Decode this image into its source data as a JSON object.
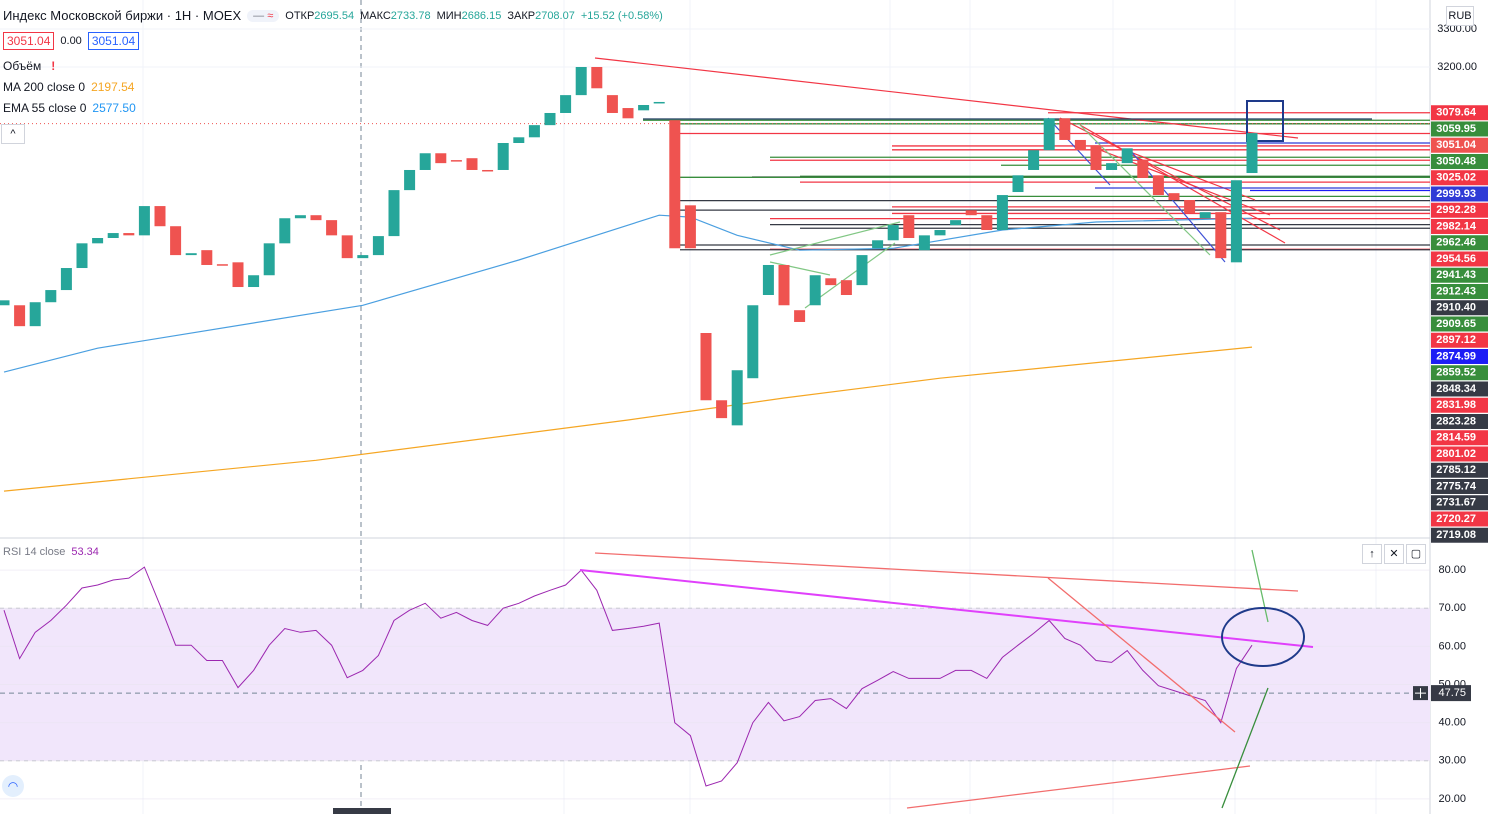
{
  "chart_data": [
    {
      "type": "candlestick",
      "title": "Индекс Московской биржи · 1H · MOEX",
      "ohlc": [
        {
          "label": "ОТКР",
          "value": 2695.54
        },
        {
          "label": "МАКС",
          "value": 2733.78
        },
        {
          "label": "МИН",
          "value": 2686.15
        },
        {
          "label": "ЗАКР",
          "value": 2708.07
        }
      ],
      "change": "+15.52 (+0.58%)",
      "bid": 3051.04,
      "spread": {
        "value": 0,
        "label": "0.00"
      },
      "ask": 3051.04,
      "volume_label": "Объём",
      "volume_warning": "!",
      "currency": "RUB",
      "color_up": "#26a69a",
      "color_down": "#ef5350",
      "open": [
        2573,
        2573,
        2518,
        2581,
        2613,
        2671,
        2736,
        2750,
        2763,
        2757,
        2834,
        2781,
        2705,
        2718,
        2681,
        2686,
        2621,
        2652,
        2736,
        2802,
        2810,
        2797,
        2757,
        2697,
        2705,
        2755,
        2876,
        2929,
        2973,
        2955,
        2960,
        2929,
        2929,
        3000,
        3015,
        3047,
        3079,
        3126,
        3200,
        3126,
        3092,
        3086,
        3105,
        3060,
        2836,
        2500,
        2323,
        2257,
        2381,
        2600,
        2679,
        2560,
        2573,
        2644,
        2639,
        2626,
        2723,
        2744,
        2810,
        2718,
        2757,
        2784,
        2823,
        2810,
        2771,
        2871,
        2929,
        2981,
        3065,
        3008,
        2994,
        2929,
        2947,
        2955,
        2915,
        2868,
        2850,
        2802,
        2818,
        2686,
        2921
      ],
      "close": [
        2586,
        2518,
        2581,
        2613,
        2671,
        2736,
        2750,
        2763,
        2757,
        2834,
        2781,
        2705,
        2710,
        2679,
        2679,
        2621,
        2652,
        2736,
        2802,
        2810,
        2797,
        2757,
        2697,
        2705,
        2755,
        2876,
        2929,
        2973,
        2947,
        2952,
        2929,
        2926,
        3000,
        3015,
        3047,
        3079,
        3126,
        3200,
        3144,
        3079,
        3065,
        3100,
        3108,
        2723,
        2723,
        2323,
        2276,
        2402,
        2573,
        2679,
        2573,
        2529,
        2652,
        2626,
        2600,
        2705,
        2744,
        2784,
        2750,
        2757,
        2771,
        2797,
        2810,
        2771,
        2863,
        2915,
        2981,
        3065,
        3008,
        2981,
        2929,
        2947,
        2986,
        2908,
        2863,
        2850,
        2815,
        2818,
        2697,
        2902,
        3026
      ],
      "ylim": [
        1960.53,
        3376.32
      ],
      "yticks": [
        {
          "value": 3300,
          "label": "3300.00"
        },
        {
          "value": 3200,
          "label": "3200.00"
        }
      ],
      "series": [
        {
          "name": "MA 200 close 0",
          "color": "#f5a623",
          "x": [
            0,
            20,
            40,
            50,
            60,
            80
          ],
          "values": [
            2084,
            2165,
            2271,
            2329,
            2381,
            2463
          ],
          "legend_value": 2197.54
        },
        {
          "name": "EMA 55 close 0",
          "color": "#4a9fe0",
          "x": [
            0,
            6,
            23,
            33,
            42,
            44,
            47,
            51,
            57,
            64,
            70,
            80
          ],
          "values": [
            2397,
            2460,
            2573,
            2692,
            2810,
            2805,
            2757,
            2718,
            2723,
            2771,
            2792,
            2802
          ],
          "legend_value": {
            "value": 2577.5,
            "label": "2577.50"
          }
        }
      ],
      "levels": [
        {
          "value": 3079.64,
          "label": "3079.64",
          "color": "#f23645"
        },
        {
          "value": 3059.95,
          "label": "3059.95",
          "color": "#388e3c"
        },
        {
          "value": 3051.04,
          "label": "3051.04",
          "color": "#ef5350"
        },
        {
          "value": 3050.48,
          "label": "3050.48",
          "color": "#388e3c"
        },
        {
          "value": 3025.02,
          "label": "3025.02",
          "color": "#f23645"
        },
        {
          "value": 2999.93,
          "label": "2999.93",
          "color": "#2f3bd6"
        },
        {
          "value": 2992.28,
          "label": "2992.28",
          "color": "#f23645"
        },
        {
          "value": 2982.14,
          "label": "2982.14",
          "color": "#f23645"
        },
        {
          "value": 2962.46,
          "label": "2962.46",
          "color": "#388e3c"
        },
        {
          "value": 2954.56,
          "label": "2954.56",
          "color": "#f23645"
        },
        {
          "value": 2941.43,
          "label": "2941.43",
          "color": "#388e3c"
        },
        {
          "value": 2912.43,
          "label": "2912.43",
          "color": "#388e3c"
        },
        {
          "value": 2910.4,
          "label": "2910.40",
          "color": "#363a45"
        },
        {
          "value": 2909.65,
          "label": "2909.65",
          "color": "#388e3c"
        },
        {
          "value": 2897.12,
          "label": "2897.12",
          "color": "#f23645"
        },
        {
          "value": 2874.99,
          "label": "2874.99",
          "color": "#1d1df5"
        },
        {
          "value": 2859.52,
          "label": "2859.52",
          "color": "#388e3c"
        },
        {
          "value": 2848.34,
          "label": "2848.34",
          "color": "#363a45"
        },
        {
          "value": 2831.98,
          "label": "2831.98",
          "color": "#f23645"
        },
        {
          "value": 2823.28,
          "label": "2823.28",
          "color": "#363a45"
        },
        {
          "value": 2814.59,
          "label": "2814.59",
          "color": "#f23645"
        },
        {
          "value": 2801.02,
          "label": "2801.02",
          "color": "#f23645"
        },
        {
          "value": 2785.12,
          "label": "2785.12",
          "color": "#363a45"
        },
        {
          "value": 2775.74,
          "label": "2775.74",
          "color": "#363a45"
        },
        {
          "value": 2731.67,
          "label": "2731.67",
          "color": "#363a45"
        },
        {
          "value": 2720.27,
          "label": "2720.27",
          "color": "#f23645"
        },
        {
          "value": 2719.08,
          "label": "2719.08",
          "color": "#363a45"
        }
      ]
    },
    {
      "type": "line",
      "title": "RSI 14 close",
      "current_value": 53.34,
      "color": "#9c27b0",
      "values": [
        69.5,
        56.8,
        63.7,
        66.8,
        70.8,
        75.3,
        76.1,
        77.4,
        77.9,
        80.8,
        70.8,
        60.3,
        60.3,
        56.3,
        56.3,
        49.2,
        53.7,
        60.3,
        64.7,
        63.7,
        64.2,
        60.3,
        51.8,
        53.7,
        57.6,
        66.8,
        69.5,
        71.3,
        67.4,
        68.9,
        66.8,
        65.5,
        70,
        71.3,
        73.2,
        74.7,
        76.1,
        80,
        74.7,
        64.2,
        64.7,
        65.3,
        66.1,
        40,
        36.6,
        23.4,
        24.7,
        29.5,
        40,
        45.3,
        40.5,
        41.6,
        45.8,
        46.3,
        43.7,
        48.9,
        51.1,
        53.4,
        51.6,
        51.6,
        51.6,
        53.7,
        53.7,
        51.6,
        57.1,
        60.3,
        63.4,
        66.8,
        62.1,
        60.3,
        56.3,
        55.8,
        58.9,
        53.7,
        49.7,
        48.4,
        47.1,
        45.8,
        40,
        54.2,
        60.3
      ],
      "ylim": [
        16.05,
        88.42
      ],
      "yticks": [
        {
          "value": 80,
          "label": "80.00"
        },
        {
          "value": 70,
          "label": "70.00"
        },
        {
          "value": 60,
          "label": "60.00"
        },
        {
          "value": 50,
          "label": "50.00"
        },
        {
          "value": 40,
          "label": "40.00"
        },
        {
          "value": 30,
          "label": "30.00"
        },
        {
          "value": 20,
          "label": "20.00"
        }
      ],
      "band": [
        30,
        70
      ],
      "band_color": "#f1e6fb",
      "crosshair": {
        "value": 47.75,
        "label": "47.75"
      }
    }
  ]
}
